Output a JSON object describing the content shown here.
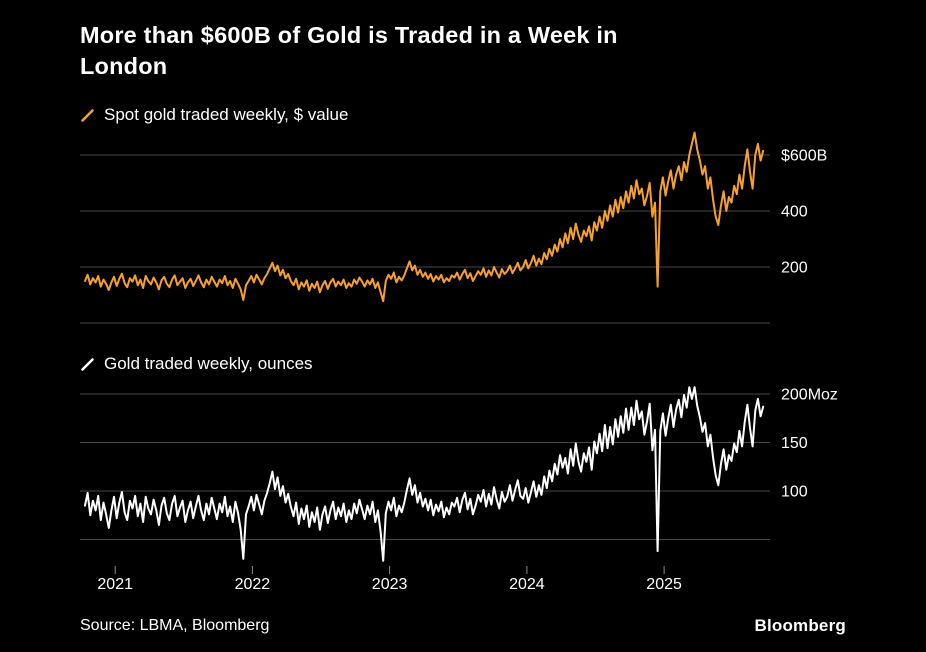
{
  "title": {
    "line1": "More than $600B of Gold is Traded in a Week in",
    "line2": "London"
  },
  "footer": {
    "source": "Source: LBMA, Bloomberg",
    "brand": "Bloomberg"
  },
  "colors": {
    "background": "#000000",
    "grid": "#474747",
    "text": "#ffffff",
    "axis_tick": "#8a8a8a",
    "accent_orange": "#f8a02c",
    "accent_white": "#ffffff"
  },
  "chart_data": [
    {
      "type": "line",
      "legend": "Spot gold traded weekly, $ value",
      "series_name": "spot-gold-value",
      "color": "#f8a02c",
      "x_domain": [
        2020.78,
        2025.75
      ],
      "points_per_year": 52,
      "y_unit": "$B",
      "y_domain": [
        0,
        600
      ],
      "grid": true,
      "legend_position": "top-left",
      "gridline_values": [
        0,
        200,
        400,
        600
      ],
      "y_ticks": [
        {
          "value": 600,
          "label": "$600B"
        },
        {
          "value": 400,
          "label": "400"
        },
        {
          "value": 200,
          "label": "200"
        }
      ],
      "values": [
        150,
        172,
        138,
        160,
        145,
        168,
        130,
        155,
        140,
        118,
        145,
        165,
        132,
        158,
        176,
        142,
        128,
        160,
        148,
        170,
        135,
        155,
        125,
        168,
        150,
        138,
        162,
        145,
        120,
        152,
        165,
        140,
        128,
        155,
        170,
        135,
        148,
        160,
        125,
        145,
        158,
        132,
        150,
        170,
        145,
        128,
        155,
        138,
        165,
        148,
        130,
        155,
        142,
        168,
        135,
        150,
        125,
        158,
        140,
        120,
        82,
        135,
        150,
        168,
        145,
        172,
        155,
        138,
        160,
        175,
        195,
        215,
        185,
        205,
        170,
        190,
        160,
        175,
        150,
        135,
        158,
        120,
        145,
        130,
        152,
        115,
        140,
        125,
        148,
        110,
        135,
        150,
        122,
        145,
        158,
        130,
        148,
        135,
        155,
        125,
        142,
        130,
        155,
        140,
        162,
        148,
        130,
        152,
        138,
        158,
        125,
        145,
        110,
        78,
        150,
        172,
        158,
        180,
        145,
        165,
        152,
        170,
        195,
        220,
        188,
        205,
        172,
        190,
        165,
        180,
        158,
        175,
        148,
        168,
        155,
        172,
        145,
        160,
        150,
        170,
        162,
        180,
        155,
        175,
        190,
        160,
        178,
        150,
        168,
        185,
        172,
        195,
        165,
        188,
        170,
        200,
        180,
        162,
        192,
        175,
        185,
        205,
        178,
        195,
        215,
        188,
        200,
        225,
        195,
        215,
        240,
        205,
        230,
        210,
        250,
        228,
        265,
        240,
        280,
        255,
        300,
        270,
        320,
        285,
        340,
        300,
        355,
        315,
        290,
        330,
        310,
        345,
        295,
        360,
        330,
        380,
        340,
        400,
        365,
        420,
        380,
        440,
        395,
        450,
        410,
        470,
        430,
        490,
        445,
        510,
        460,
        480,
        420,
        455,
        500,
        380,
        430,
        130,
        470,
        520,
        455,
        505,
        545,
        480,
        530,
        560,
        510,
        575,
        540,
        600,
        640,
        680,
        620,
        580,
        530,
        560,
        480,
        520,
        440,
        380,
        350,
        420,
        470,
        400,
        450,
        430,
        490,
        460,
        530,
        480,
        560,
        620,
        540,
        480,
        600,
        640,
        580,
        615
      ]
    },
    {
      "type": "line",
      "legend": "Gold traded weekly, ounces",
      "series_name": "gold-volume-ounces",
      "color": "#ffffff",
      "x_domain": [
        2020.78,
        2025.75
      ],
      "points_per_year": 52,
      "y_unit": "Moz",
      "y_domain": [
        0,
        200
      ],
      "grid": true,
      "legend_position": "top-left",
      "gridline_values": [
        50,
        100,
        150,
        200
      ],
      "y_ticks": [
        {
          "value": 200,
          "label": "200Moz"
        },
        {
          "value": 150,
          "label": "150"
        },
        {
          "value": 100,
          "label": "100"
        }
      ],
      "x_ticks": [
        {
          "year": 2021,
          "label": "2021"
        },
        {
          "year": 2022,
          "label": "2022"
        },
        {
          "year": 2023,
          "label": "2023"
        },
        {
          "year": 2024,
          "label": "2024"
        },
        {
          "year": 2025,
          "label": "2025"
        }
      ],
      "values": [
        85,
        98,
        75,
        90,
        80,
        95,
        70,
        88,
        76,
        62,
        80,
        94,
        72,
        88,
        99,
        78,
        70,
        90,
        82,
        95,
        74,
        87,
        68,
        94,
        82,
        76,
        91,
        80,
        65,
        85,
        93,
        77,
        70,
        87,
        95,
        74,
        83,
        90,
        68,
        80,
        89,
        72,
        84,
        95,
        80,
        70,
        87,
        76,
        93,
        82,
        71,
        87,
        78,
        94,
        74,
        84,
        68,
        89,
        77,
        60,
        30,
        76,
        84,
        94,
        80,
        96,
        86,
        76,
        90,
        98,
        108,
        120,
        102,
        114,
        95,
        105,
        88,
        97,
        84,
        74,
        88,
        66,
        82,
        71,
        85,
        63,
        78,
        68,
        83,
        60,
        76,
        84,
        67,
        80,
        89,
        71,
        83,
        74,
        87,
        68,
        80,
        71,
        87,
        77,
        91,
        81,
        71,
        85,
        76,
        89,
        68,
        80,
        58,
        28,
        77,
        89,
        80,
        93,
        74,
        85,
        78,
        88,
        101,
        113,
        96,
        106,
        88,
        98,
        84,
        92,
        80,
        91,
        75,
        86,
        79,
        89,
        73,
        83,
        76,
        88,
        84,
        93,
        78,
        91,
        98,
        81,
        92,
        76,
        85,
        96,
        89,
        101,
        84,
        97,
        86,
        104,
        91,
        82,
        99,
        89,
        94,
        106,
        90,
        101,
        111,
        95,
        92,
        103,
        88,
        99,
        110,
        94,
        106,
        96,
        115,
        103,
        121,
        110,
        128,
        117,
        137,
        124,
        134,
        118,
        143,
        126,
        149,
        130,
        120,
        139,
        130,
        145,
        122,
        151,
        139,
        159,
        141,
        168,
        144,
        166,
        148,
        174,
        156,
        177,
        160,
        185,
        163,
        186,
        168,
        193,
        174,
        182,
        158,
        172,
        190,
        142,
        163,
        38,
        162,
        180,
        157,
        175,
        189,
        166,
        184,
        194,
        176,
        199,
        186,
        207,
        195,
        207,
        188,
        176,
        161,
        170,
        146,
        158,
        134,
        116,
        106,
        128,
        143,
        122,
        137,
        131,
        149,
        140,
        162,
        146,
        171,
        189,
        165,
        146,
        183,
        195,
        177,
        187
      ]
    }
  ]
}
